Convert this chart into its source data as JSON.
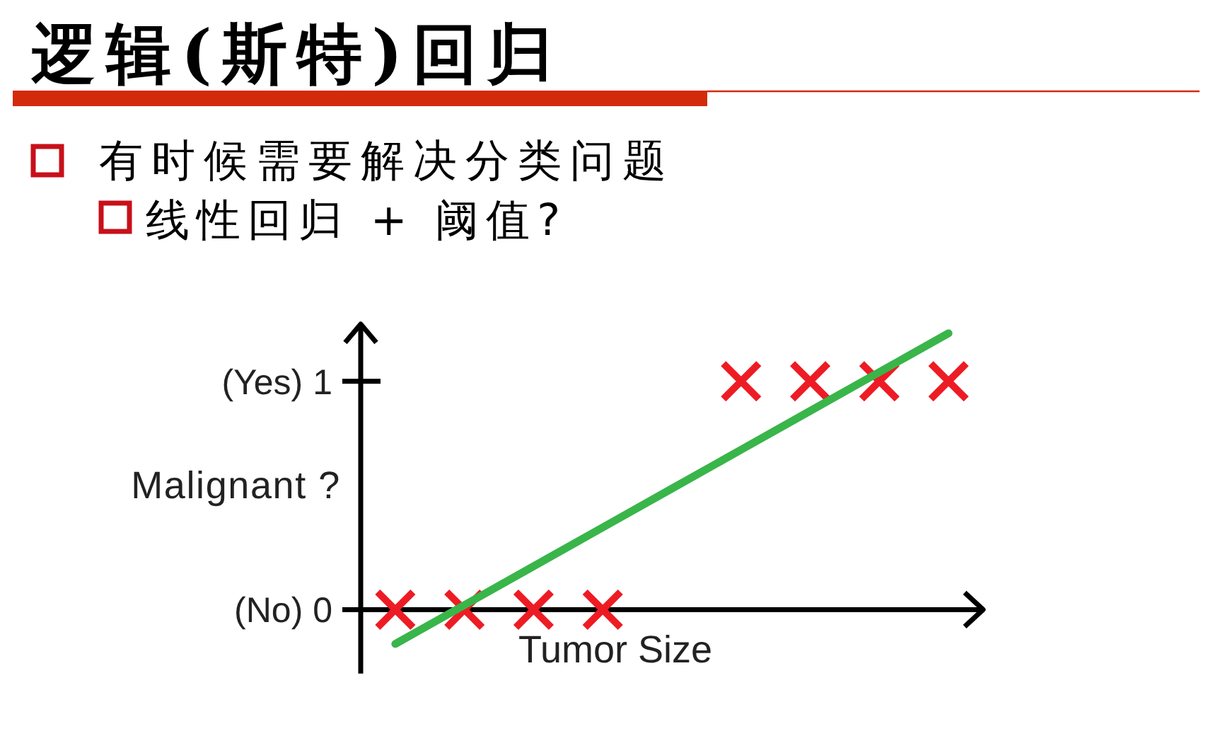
{
  "chart_data": {
    "type": "scatter",
    "title": "逻辑(斯特)回归",
    "annotations": [
      "有时候需要解决分类问题",
      "线性回归 + 阈值?"
    ],
    "xlabel": "Tumor Size",
    "ylabel": "Malignant ?",
    "categories": [
      null,
      null,
      null,
      null,
      null,
      null,
      null,
      null,
      null
    ],
    "series": [
      {
        "color": "#ed1c24",
        "marker": "cross",
        "values": [
          0,
          0,
          0,
          0,
          null,
          1,
          1,
          1,
          1
        ]
      },
      {
        "type": "line",
        "color": "#39b54a",
        "marker": "none",
        "line_style": "solid",
        "values": [
          -0.15,
          0.02,
          0.19,
          0.36,
          0.53,
          0.7,
          0.87,
          1.04,
          1.21
        ]
      }
    ],
    "ylim": [
      -0.28,
      1.25
    ],
    "yticks": [
      {
        "value": 0,
        "label": "(No) 0"
      },
      {
        "value": 1,
        "label": "(Yes) 1"
      }
    ]
  }
}
